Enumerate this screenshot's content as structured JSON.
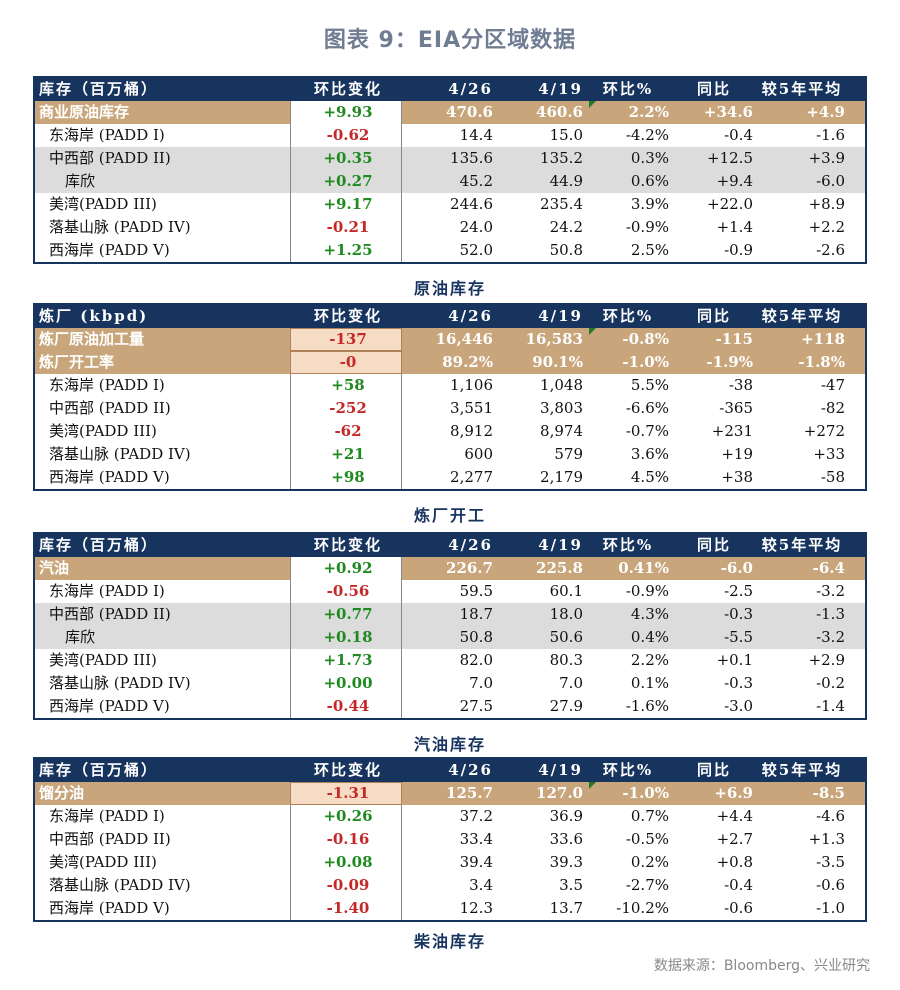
{
  "title": "图表 9：EIA分区域数据",
  "source": "数据来源：Bloomberg、兴业研究",
  "colors": {
    "header": "#17345f",
    "highlight": "#c8a57a",
    "positive": "#1f8a1f",
    "negative": "#c62828",
    "shade": "#dcdcdc"
  },
  "tables": [
    {
      "caption": "原油库存",
      "header": [
        "库存（百万桶）",
        "环比变化",
        "4/26",
        "4/19",
        "环比%",
        "同比",
        "较5年平均"
      ],
      "rows": [
        [
          "商业原油库存",
          "+9.93",
          "470.6",
          "460.6",
          "2.2%",
          "+34.6",
          "+4.9"
        ],
        [
          "东海岸 (PADD I)",
          "-0.62",
          "14.4",
          "15.0",
          "-4.2%",
          "-0.4",
          "-1.6"
        ],
        [
          "中西部 (PADD II)",
          "+0.35",
          "135.6",
          "135.2",
          "0.3%",
          "+12.5",
          "+3.9"
        ],
        [
          "库欣",
          "+0.27",
          "45.2",
          "44.9",
          "0.6%",
          "+9.4",
          "-6.0"
        ],
        [
          "美湾(PADD III)",
          "+9.17",
          "244.6",
          "235.4",
          "3.9%",
          "+22.0",
          "+8.9"
        ],
        [
          "落基山脉 (PADD IV)",
          "-0.21",
          "24.0",
          "24.2",
          "-0.9%",
          "+1.4",
          "+2.2"
        ],
        [
          "西海岸 (PADD V)",
          "+1.25",
          "52.0",
          "50.8",
          "2.5%",
          "-0.9",
          "-2.6"
        ]
      ]
    },
    {
      "caption": "炼厂开工",
      "header": [
        "炼厂  (kbpd)",
        "环比变化",
        "4/26",
        "4/19",
        "环比%",
        "同比",
        "较5年平均"
      ],
      "rows": [
        [
          "炼厂原油加工量",
          "-137",
          "16,446",
          "16,583",
          "-0.8%",
          "-115",
          "+118"
        ],
        [
          "炼厂开工率",
          "-0",
          "89.2%",
          "90.1%",
          "-1.0%",
          "-1.9%",
          "-1.8%"
        ],
        [
          "东海岸 (PADD I)",
          "+58",
          "1,106",
          "1,048",
          "5.5%",
          "-38",
          "-47"
        ],
        [
          "中西部 (PADD II)",
          "-252",
          "3,551",
          "3,803",
          "-6.6%",
          "-365",
          "-82"
        ],
        [
          "美湾(PADD III)",
          "-62",
          "8,912",
          "8,974",
          "-0.7%",
          "+231",
          "+272"
        ],
        [
          "落基山脉 (PADD IV)",
          "+21",
          "600",
          "579",
          "3.6%",
          "+19",
          "+33"
        ],
        [
          "西海岸 (PADD V)",
          "+98",
          "2,277",
          "2,179",
          "4.5%",
          "+38",
          "-58"
        ]
      ]
    },
    {
      "caption": "汽油库存",
      "header": [
        "库存（百万桶）",
        "环比变化",
        "4/26",
        "4/19",
        "环比%",
        "同比",
        "较5年平均"
      ],
      "rows": [
        [
          "汽油",
          "+0.92",
          "226.7",
          "225.8",
          "0.41%",
          "-6.0",
          "-6.4"
        ],
        [
          "东海岸 (PADD I)",
          "-0.56",
          "59.5",
          "60.1",
          "-0.9%",
          "-2.5",
          "-3.2"
        ],
        [
          "中西部 (PADD II)",
          "+0.77",
          "18.7",
          "18.0",
          "4.3%",
          "-0.3",
          "-1.3"
        ],
        [
          "库欣",
          "+0.18",
          "50.8",
          "50.6",
          "0.4%",
          "-5.5",
          "-3.2"
        ],
        [
          "美湾(PADD III)",
          "+1.73",
          "82.0",
          "80.3",
          "2.2%",
          "+0.1",
          "+2.9"
        ],
        [
          "落基山脉 (PADD IV)",
          "+0.00",
          "7.0",
          "7.0",
          "0.1%",
          "-0.3",
          "-0.2"
        ],
        [
          "西海岸 (PADD V)",
          "-0.44",
          "27.5",
          "27.9",
          "-1.6%",
          "-3.0",
          "-1.4"
        ]
      ]
    },
    {
      "caption": "柴油库存",
      "header": [
        "库存（百万桶）",
        "环比变化",
        "4/26",
        "4/19",
        "环比%",
        "同比",
        "较5年平均"
      ],
      "rows": [
        [
          "馏分油",
          "-1.31",
          "125.7",
          "127.0",
          "-1.0%",
          "+6.9",
          "-8.5"
        ],
        [
          "东海岸 (PADD I)",
          "+0.26",
          "37.2",
          "36.9",
          "0.7%",
          "+4.4",
          "-4.6"
        ],
        [
          "中西部 (PADD II)",
          "-0.16",
          "33.4",
          "33.6",
          "-0.5%",
          "+2.7",
          "+1.3"
        ],
        [
          "美湾(PADD III)",
          "+0.08",
          "39.4",
          "39.3",
          "0.2%",
          "+0.8",
          "-3.5"
        ],
        [
          "落基山脉 (PADD IV)",
          "-0.09",
          "3.4",
          "3.5",
          "-2.7%",
          "-0.4",
          "-0.6"
        ],
        [
          "西海岸 (PADD V)",
          "-1.40",
          "12.3",
          "13.7",
          "-10.2%",
          "-0.6",
          "-1.0"
        ]
      ]
    }
  ]
}
